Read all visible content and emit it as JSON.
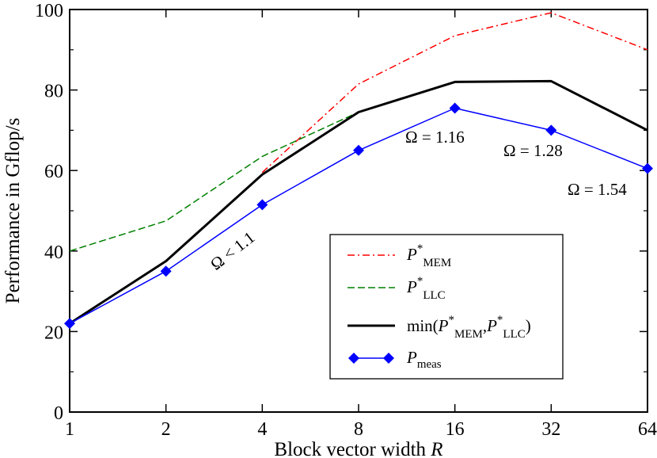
{
  "chart_data": {
    "type": "line",
    "title": "",
    "xlabel_text": "Block vector width ",
    "xlabel_var": "R",
    "ylabel": "Performance in Gflop/s",
    "x_scale": "log2",
    "x_ticks": [
      "1",
      "2",
      "4",
      "8",
      "16",
      "32",
      "64"
    ],
    "x_values": [
      1,
      2,
      4,
      8,
      16,
      32,
      64
    ],
    "ylim": [
      0,
      100
    ],
    "y_ticks": [
      "0",
      "20",
      "40",
      "60",
      "80",
      "100"
    ],
    "grid": false,
    "legend_position": "lower-right",
    "series": [
      {
        "key": "mem",
        "legend_main": "P",
        "legend_sup": "*",
        "legend_sub": "MEM",
        "style": "dash-dot",
        "color": "#ff0000",
        "points": [
          [
            4,
            59.5
          ],
          [
            8,
            81.5
          ],
          [
            16,
            93.5
          ],
          [
            32,
            99.2
          ],
          [
            64,
            90
          ]
        ]
      },
      {
        "key": "llc",
        "legend_main": "P",
        "legend_sup": "*",
        "legend_sub": "LLC",
        "style": "dashed",
        "color": "#008000",
        "points": [
          [
            1,
            40
          ],
          [
            2,
            47.5
          ],
          [
            4,
            63.5
          ],
          [
            8,
            74.5
          ]
        ]
      },
      {
        "key": "min",
        "legend_pre": "min(",
        "legend_p1": "P",
        "legend_sup1": "*",
        "legend_sub1": "MEM",
        "legend_comma": ",",
        "legend_p2": "P",
        "legend_sup2": "*",
        "legend_sub2": "LLC",
        "legend_post": ")",
        "style": "solid",
        "color": "#000000",
        "points": [
          [
            1,
            22
          ],
          [
            2,
            37.5
          ],
          [
            4,
            59
          ],
          [
            8,
            74.5
          ],
          [
            16,
            82
          ],
          [
            32,
            82.2
          ],
          [
            64,
            70
          ]
        ]
      },
      {
        "key": "meas",
        "legend_main": "P",
        "legend_sub": "meas",
        "style": "solid-diamond",
        "color": "#0000ff",
        "points": [
          [
            1,
            22
          ],
          [
            2,
            35
          ],
          [
            4,
            51.5
          ],
          [
            8,
            65
          ],
          [
            16,
            75.5
          ],
          [
            32,
            70
          ],
          [
            64,
            60.5
          ]
        ]
      }
    ],
    "annotations": [
      {
        "text": "Ω < 1.1",
        "rotate": -38
      },
      {
        "text": "Ω = 1.16"
      },
      {
        "text": "Ω = 1.28"
      },
      {
        "text": "Ω = 1.54"
      }
    ]
  }
}
